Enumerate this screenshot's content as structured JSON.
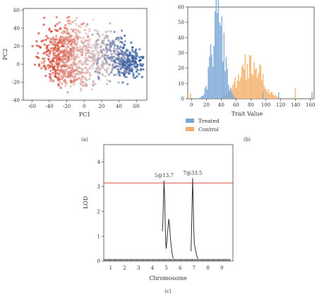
{
  "panel_labels": [
    "(a)",
    "(b)",
    "(c)"
  ],
  "chart_data": [
    {
      "type": "scatter",
      "xlabel": "PC1",
      "ylabel": "PC2",
      "xlim": [
        -70,
        72
      ],
      "ylim": [
        -40,
        62
      ],
      "x_ticks": [
        -60,
        -40,
        -20,
        0,
        20,
        40,
        60
      ],
      "y_ticks": [
        -40,
        -20,
        0,
        20,
        40,
        60
      ],
      "colors": {
        "low": "#d6402b",
        "mid": "#e8c9c4",
        "high": "#2b5aa3"
      },
      "series": [
        {
          "color_by": "PC1",
          "clusters": [
            {
              "x": -20,
              "y": 20,
              "n": 380,
              "sx": 14,
              "sy": 14
            },
            {
              "x": 20,
              "y": 10,
              "n": 300,
              "sx": 15,
              "sy": 13
            },
            {
              "x": 50,
              "y": 3,
              "n": 260,
              "sx": 9,
              "sy": 8
            },
            {
              "x": -10,
              "y": -12,
              "n": 160,
              "sx": 13,
              "sy": 8
            },
            {
              "x": -35,
              "y": 5,
              "n": 120,
              "sx": 10,
              "sy": 10
            }
          ]
        }
      ]
    },
    {
      "type": "bar",
      "subtype": "histogram",
      "xlabel": "Trait Value",
      "ylabel": "",
      "xlim": [
        -5,
        165
      ],
      "ylim": [
        0,
        60
      ],
      "x_ticks": [
        0,
        20,
        40,
        60,
        80,
        100,
        120,
        140,
        160
      ],
      "y_ticks": [
        0,
        10,
        20,
        30,
        40,
        50,
        60
      ],
      "legend_placement": "bottom-left",
      "series": [
        {
          "name": "Treated",
          "color": "#7aa7d6",
          "mean": 35,
          "sd": 8,
          "peak": 55
        },
        {
          "name": "Control",
          "color": "#f3b06a",
          "mean": 78,
          "sd": 15,
          "peak": 24
        }
      ]
    },
    {
      "type": "line",
      "xlabel": "Chromosome",
      "ylabel": "LOD",
      "ylim": [
        0,
        4.7
      ],
      "y_ticks": [
        0,
        1,
        2,
        3,
        4
      ],
      "categories": [
        "1",
        "2",
        "3",
        "4",
        "5",
        "6",
        "7",
        "8",
        "9"
      ],
      "threshold": {
        "value": 3.15,
        "color": "#d9534f"
      },
      "annotations": [
        {
          "label": "5@13.7",
          "chromosome": 5,
          "lod": 3.25
        },
        {
          "label": "7@33.5",
          "chromosome": 7,
          "lod": 3.35
        }
      ],
      "peaks": [
        {
          "chromosome": 5,
          "points": [
            [
              4.72,
              1.2
            ],
            [
              4.76,
              1.6
            ],
            [
              4.8,
              2.5
            ],
            [
              4.84,
              3.25
            ],
            [
              4.88,
              2.6
            ],
            [
              4.92,
              1.6
            ],
            [
              4.96,
              0.7
            ],
            [
              5.0,
              0.5
            ],
            [
              5.06,
              0.9
            ],
            [
              5.12,
              1.3
            ],
            [
              5.18,
              1.7
            ],
            [
              5.24,
              1.4
            ],
            [
              5.3,
              0.9
            ],
            [
              5.36,
              0.6
            ],
            [
              5.42,
              0.3
            ],
            [
              5.5,
              0.1
            ]
          ]
        },
        {
          "chromosome": 7,
          "points": [
            [
              6.78,
              0.4
            ],
            [
              6.82,
              1.2
            ],
            [
              6.86,
              2.3
            ],
            [
              6.9,
              3.35
            ],
            [
              6.94,
              2.4
            ],
            [
              6.98,
              1.3
            ],
            [
              7.02,
              0.7
            ],
            [
              7.08,
              0.5
            ],
            [
              7.14,
              0.35
            ],
            [
              7.2,
              0.2
            ],
            [
              7.28,
              0.1
            ]
          ]
        }
      ]
    }
  ]
}
